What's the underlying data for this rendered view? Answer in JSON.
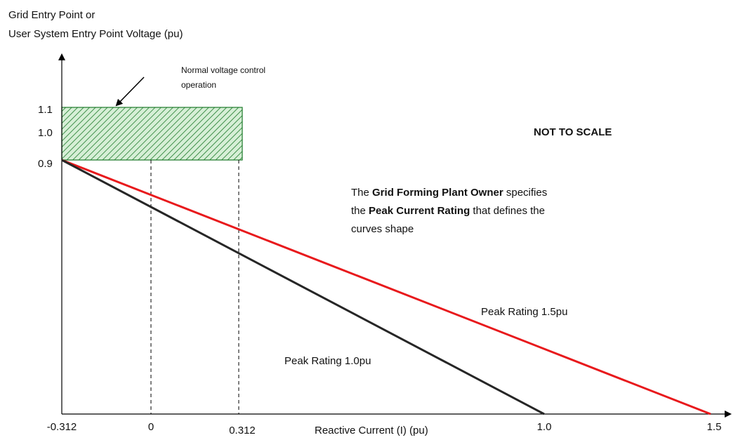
{
  "header": {
    "title_lines": [
      "Grid Entry Point or",
      "User System Entry Point Voltage (pu)"
    ]
  },
  "y_labels": [
    "1.1",
    "1.0",
    "0.9"
  ],
  "x_labels": [
    "-0.312",
    "0",
    "0.312",
    "1.0",
    "1.5"
  ],
  "x_axis_title": "Reactive Current (I) (pu)",
  "region_annotation": [
    "Normal voltage control",
    "operation"
  ],
  "note": "NOT TO SCALE",
  "description": [
    [
      {
        "text": "The ",
        "bold": false
      },
      {
        "text": "Grid Forming Plant Owner",
        "bold": true
      },
      {
        "text": " specifies",
        "bold": false
      }
    ],
    [
      {
        "text": "the ",
        "bold": false
      },
      {
        "text": "Peak Current Rating",
        "bold": true
      },
      {
        "text": " that defines the",
        "bold": false
      }
    ],
    [
      {
        "text": "curves shape",
        "bold": false
      }
    ]
  ],
  "curves": [
    {
      "label": "Peak Rating 1.5pu",
      "color": "#e8191c"
    },
    {
      "label": "Peak Rating 1.0pu",
      "color": "#262626"
    }
  ]
}
